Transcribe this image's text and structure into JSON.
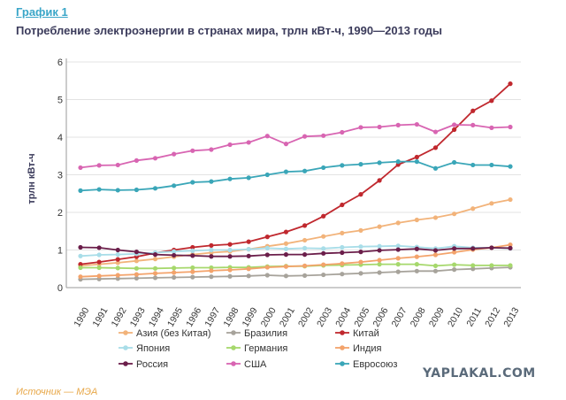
{
  "figure_label": "График 1",
  "title": "Потребление электроэнергии в странах мира, трлн кВт-ч, 1990—2013 годы",
  "source": "Источник — МЭА",
  "watermark": "YAPLAKAL.COM",
  "chart_data": {
    "type": "line",
    "ylabel": "трлн кВт-ч",
    "xlabel": "",
    "ylim": [
      0,
      6
    ],
    "yticks": [
      0,
      1,
      2,
      3,
      4,
      5,
      6
    ],
    "grid": "horizontal",
    "legend_position": "bottom",
    "x": [
      "1990",
      "1991",
      "1992",
      "1993",
      "1994",
      "1995",
      "1996",
      "1997",
      "1998",
      "1999",
      "2000",
      "2001",
      "2002",
      "2003",
      "2004",
      "2005",
      "2006",
      "2007",
      "2008",
      "2009",
      "2010",
      "2011",
      "2012",
      "2013"
    ],
    "series": [
      {
        "name": "Азия (без Китая)",
        "color": "#f2b37a",
        "values": [
          0.58,
          0.62,
          0.66,
          0.71,
          0.76,
          0.82,
          0.88,
          0.93,
          0.96,
          1.02,
          1.1,
          1.17,
          1.26,
          1.36,
          1.45,
          1.52,
          1.62,
          1.72,
          1.8,
          1.86,
          1.96,
          2.1,
          2.24,
          2.34
        ]
      },
      {
        "name": "Бразилия",
        "color": "#a7a39b",
        "values": [
          0.22,
          0.23,
          0.24,
          0.25,
          0.26,
          0.27,
          0.28,
          0.29,
          0.3,
          0.31,
          0.33,
          0.31,
          0.32,
          0.34,
          0.36,
          0.38,
          0.4,
          0.42,
          0.44,
          0.44,
          0.48,
          0.5,
          0.52,
          0.54
        ]
      },
      {
        "name": "Китай",
        "color": "#c0282e",
        "values": [
          0.62,
          0.68,
          0.75,
          0.82,
          0.92,
          1.0,
          1.07,
          1.12,
          1.15,
          1.22,
          1.35,
          1.48,
          1.65,
          1.9,
          2.2,
          2.48,
          2.85,
          3.27,
          3.47,
          3.72,
          4.2,
          4.7,
          4.97,
          5.42
        ]
      },
      {
        "name": "Япония",
        "color": "#a8dde8",
        "values": [
          0.84,
          0.87,
          0.88,
          0.9,
          0.93,
          0.96,
          0.98,
          1.0,
          1.0,
          1.02,
          1.05,
          1.03,
          1.05,
          1.04,
          1.07,
          1.09,
          1.1,
          1.11,
          1.08,
          1.04,
          1.1,
          1.06,
          1.06,
          1.04
        ]
      },
      {
        "name": "Германия",
        "color": "#a6d86c",
        "values": [
          0.53,
          0.53,
          0.52,
          0.51,
          0.51,
          0.52,
          0.53,
          0.53,
          0.54,
          0.54,
          0.56,
          0.57,
          0.57,
          0.59,
          0.6,
          0.61,
          0.62,
          0.62,
          0.62,
          0.58,
          0.61,
          0.59,
          0.59,
          0.59
        ]
      },
      {
        "name": "Индия",
        "color": "#f3a36b",
        "values": [
          0.29,
          0.31,
          0.33,
          0.35,
          0.38,
          0.4,
          0.42,
          0.45,
          0.47,
          0.5,
          0.54,
          0.56,
          0.58,
          0.61,
          0.64,
          0.68,
          0.73,
          0.78,
          0.82,
          0.87,
          0.94,
          1.01,
          1.06,
          1.14
        ]
      },
      {
        "name": "Россия",
        "color": "#6b1e4a",
        "values": [
          1.07,
          1.06,
          1.0,
          0.95,
          0.88,
          0.86,
          0.85,
          0.83,
          0.83,
          0.84,
          0.87,
          0.88,
          0.88,
          0.91,
          0.93,
          0.95,
          0.99,
          1.01,
          1.03,
          0.99,
          1.04,
          1.04,
          1.06,
          1.05
        ]
      },
      {
        "name": "США",
        "color": "#d865b2",
        "values": [
          3.19,
          3.25,
          3.26,
          3.38,
          3.44,
          3.55,
          3.64,
          3.67,
          3.8,
          3.86,
          4.03,
          3.82,
          4.02,
          4.04,
          4.13,
          4.26,
          4.27,
          4.32,
          4.34,
          4.14,
          4.33,
          4.32,
          4.25,
          4.27
        ]
      },
      {
        "name": "Евросоюз",
        "color": "#3aa6b8",
        "values": [
          2.58,
          2.61,
          2.59,
          2.6,
          2.64,
          2.71,
          2.8,
          2.82,
          2.89,
          2.92,
          3.0,
          3.08,
          3.1,
          3.19,
          3.25,
          3.28,
          3.32,
          3.35,
          3.35,
          3.17,
          3.33,
          3.26,
          3.26,
          3.22
        ]
      }
    ]
  }
}
